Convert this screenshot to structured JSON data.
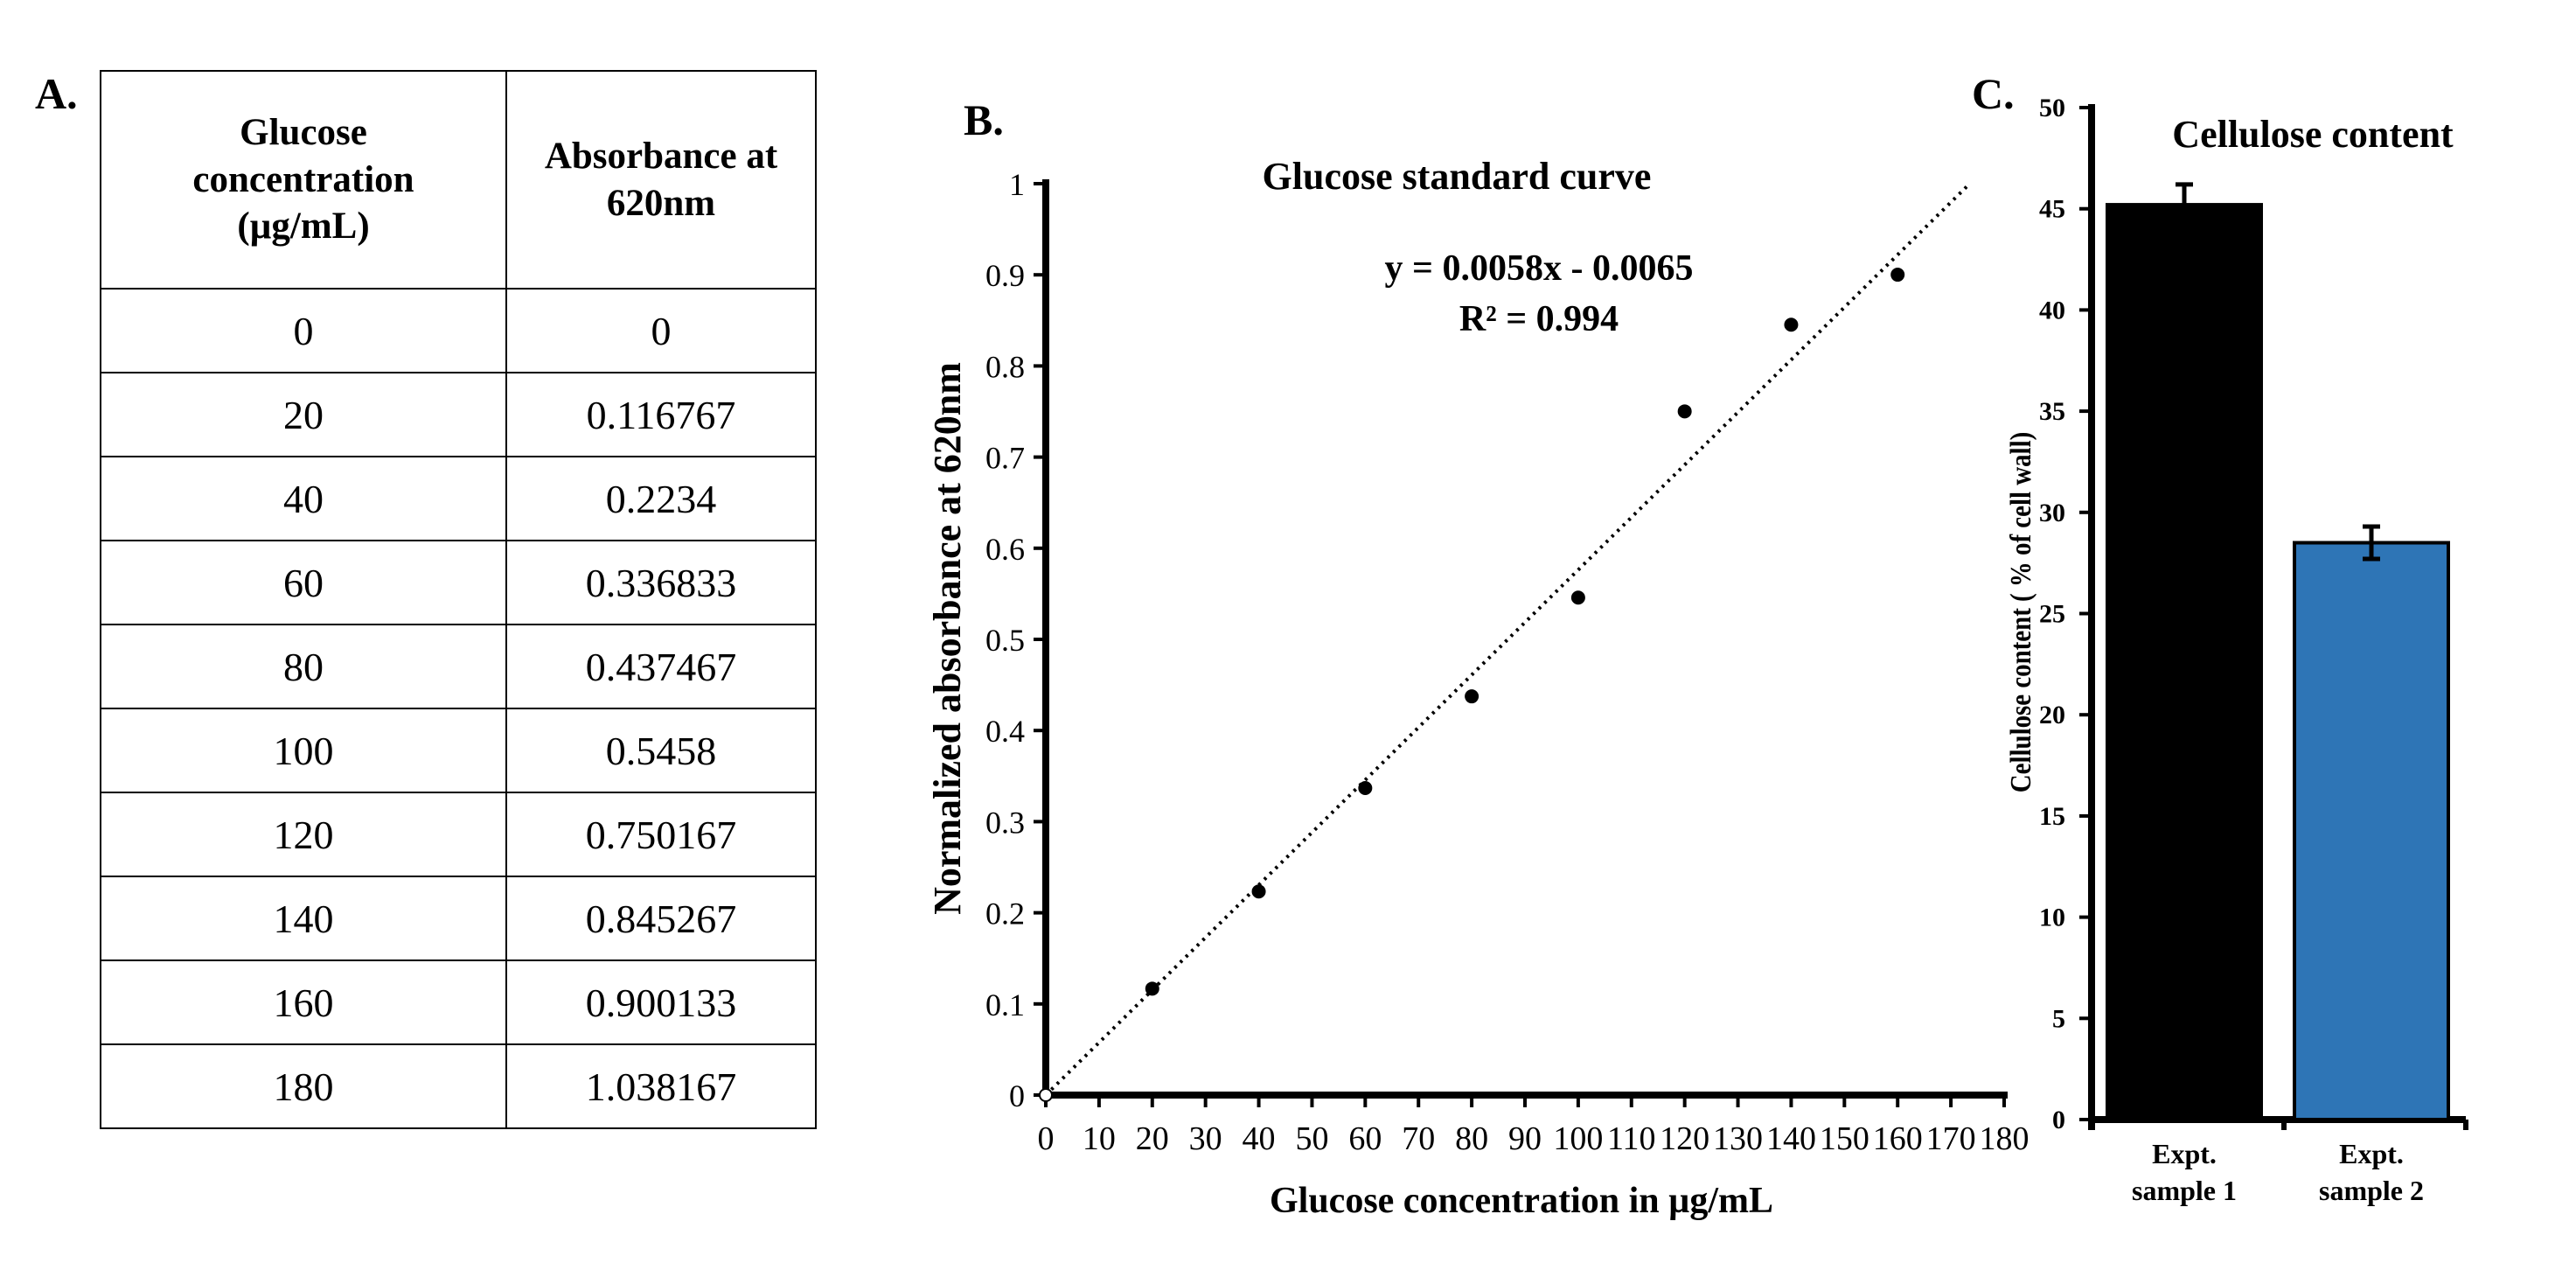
{
  "panels": {
    "a": "A.",
    "b": "B.",
    "c": "C."
  },
  "table": {
    "headers": [
      "Glucose concentration (µg/mL)",
      "Absorbance at 620nm"
    ],
    "rows": [
      [
        "0",
        "0"
      ],
      [
        "20",
        "0.116767"
      ],
      [
        "40",
        "0.2234"
      ],
      [
        "60",
        "0.336833"
      ],
      [
        "80",
        "0.437467"
      ],
      [
        "100",
        "0.5458"
      ],
      [
        "120",
        "0.750167"
      ],
      [
        "140",
        "0.845267"
      ],
      [
        "160",
        "0.900133"
      ],
      [
        "180",
        "1.038167"
      ]
    ]
  },
  "chart_data": [
    {
      "type": "scatter",
      "title": "Glucose standard curve",
      "xlabel": "Glucose concentration in µg/mL",
      "ylabel": "Normalized absorbance at 620nm",
      "xlim": [
        0,
        180
      ],
      "ylim": [
        0,
        1
      ],
      "xticks": [
        0,
        10,
        20,
        30,
        40,
        50,
        60,
        70,
        80,
        90,
        100,
        110,
        120,
        130,
        140,
        150,
        160,
        170,
        180
      ],
      "yticks": [
        0,
        0.1,
        0.2,
        0.3,
        0.4,
        0.5,
        0.6,
        0.7,
        0.8,
        0.9,
        1
      ],
      "x": [
        0,
        20,
        40,
        60,
        80,
        100,
        120,
        140,
        160
      ],
      "y": [
        0,
        0.116767,
        0.2234,
        0.336833,
        0.437467,
        0.5458,
        0.750167,
        0.845267,
        0.900133
      ],
      "trendline": {
        "type": "linear",
        "slope": 0.0058,
        "intercept": -0.0065,
        "style": "dotted"
      },
      "equation": "y = 0.0058x - 0.0065",
      "r_squared": "R² = 0.994",
      "grid": false
    },
    {
      "type": "bar",
      "title": "Cellulose content",
      "ylabel": "Cellulose content ( % of cell wall)",
      "categories": [
        "Expt. sample 1",
        "Expt. sample 2"
      ],
      "category_lines": [
        [
          "Expt.",
          "sample 1"
        ],
        [
          "Expt.",
          "sample 2"
        ]
      ],
      "values": [
        45.2,
        28.5
      ],
      "errors": [
        1.0,
        0.8
      ],
      "colors": [
        "#000000",
        "#2E75B6"
      ],
      "ylim": [
        0,
        50
      ],
      "yticks": [
        0,
        5,
        10,
        15,
        20,
        25,
        30,
        35,
        40,
        45,
        50
      ],
      "grid": false
    }
  ]
}
